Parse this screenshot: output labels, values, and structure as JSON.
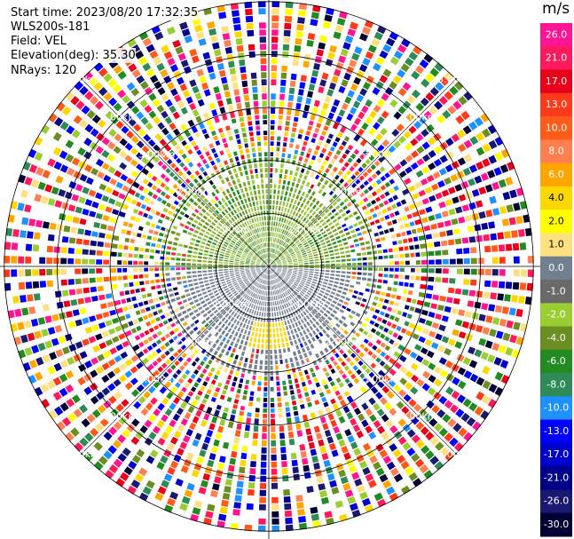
{
  "header": {
    "start_time": "Start time: 2023/08/20 17:32:35",
    "instrument": "WLS200s-181",
    "field": "Field: VEL",
    "elevation": "Elevation(deg): 35.30",
    "nrays": "NRays: 120"
  },
  "chart_data": {
    "type": "ppi",
    "field": "VEL",
    "units": "m/s",
    "nrays": 120,
    "elevation_deg": 35.3,
    "range_rings_km": [
      1.0,
      2.0,
      3.0,
      4.0,
      5.0
    ],
    "ring_labels": [
      "1.00km",
      "2.00km",
      "3.00km",
      "4.00km",
      "5.00km"
    ],
    "max_range_km": 7.1,
    "colorbar_ticks": [
      "26.0",
      "21.0",
      "17.0",
      "13.0",
      "10.0",
      "8.0",
      "6.0",
      "4.0",
      "2.0",
      "1.0",
      "0.0",
      "-1.0",
      "-2.0",
      "-4.0",
      "-6.0",
      "-8.0",
      "-10.0",
      "-13.0",
      "-17.0",
      "-21.0",
      "-26.0",
      "-30.0"
    ],
    "colorbar_colors": [
      "#ff1493",
      "#ff1a5e",
      "#e8001a",
      "#ff3a1a",
      "#ff5c1a",
      "#ff7f50",
      "#ffa500",
      "#ffd700",
      "#ffff00",
      "#ffe080",
      "#708090",
      "#696969",
      "#9acd32",
      "#6b8e23",
      "#228b22",
      "#2e8b57",
      "#1e90ff",
      "#0000ff",
      "#0000cd",
      "#00008b",
      "#191970",
      "#000033"
    ],
    "near_field": {
      "north_half": "green",
      "south_half": "gray",
      "yellow_patch_south": true
    }
  }
}
